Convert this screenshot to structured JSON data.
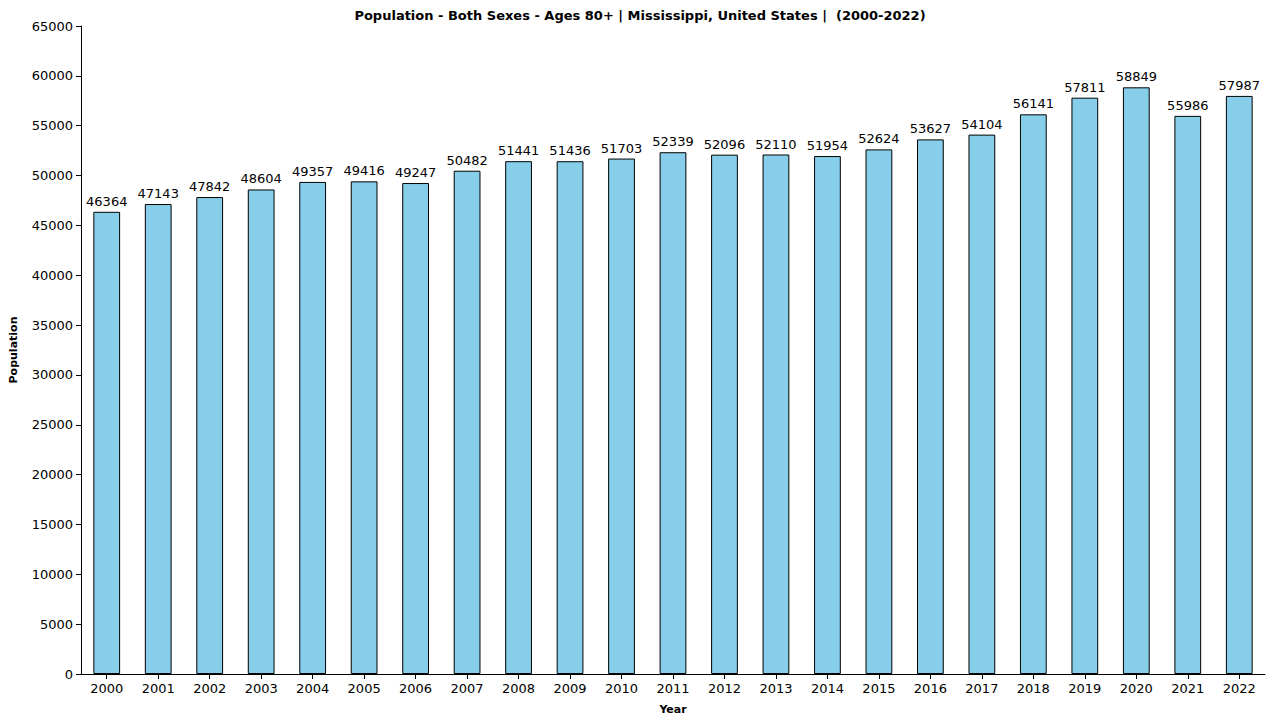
{
  "chart_data": {
    "type": "bar",
    "title": "Population - Both Sexes - Ages 80+ | Mississippi, United States |  (2000-2022)",
    "x_label": "Year",
    "y_label": "Population",
    "categories": [
      "2000",
      "2001",
      "2002",
      "2003",
      "2004",
      "2005",
      "2006",
      "2007",
      "2008",
      "2009",
      "2010",
      "2011",
      "2012",
      "2013",
      "2014",
      "2015",
      "2016",
      "2017",
      "2018",
      "2019",
      "2020",
      "2021",
      "2022"
    ],
    "values": [
      46364,
      47143,
      47842,
      48604,
      49357,
      49416,
      49247,
      50482,
      51441,
      51436,
      51703,
      52339,
      52096,
      52110,
      51954,
      52624,
      53627,
      54104,
      56141,
      57811,
      58849,
      55986,
      57987
    ],
    "color": "#87ceeb",
    "ylim": [
      0,
      65000
    ],
    "yticks": [
      0,
      5000,
      10000,
      15000,
      20000,
      25000,
      30000,
      35000,
      40000,
      45000,
      50000,
      55000,
      60000,
      65000
    ],
    "grid": false,
    "data_labels": true
  }
}
